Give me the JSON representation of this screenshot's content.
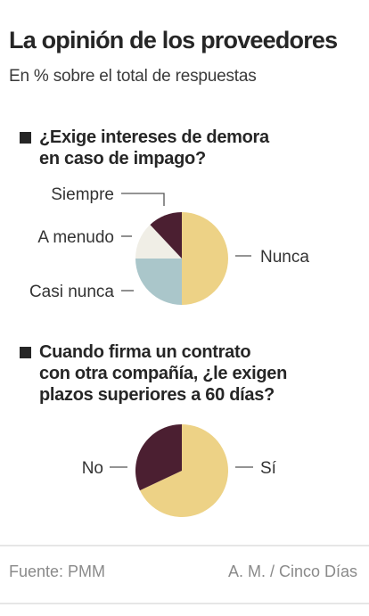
{
  "header": {
    "title": "La opinión de los proveedores",
    "subtitle": "En % sobre el total de respuestas"
  },
  "chart_data": [
    {
      "type": "pie",
      "question": "¿Exige intereses de demora\nen caso de impago?",
      "slices": [
        {
          "label": "Nunca",
          "value": 50,
          "color": "#edd286"
        },
        {
          "label": "Casi nunca",
          "value": 25,
          "color": "#aac6ca"
        },
        {
          "label": "A menudo",
          "value": 13,
          "color": "#f0eee6"
        },
        {
          "label": "Siempre",
          "value": 12,
          "color": "#4b1f31"
        }
      ]
    },
    {
      "type": "pie",
      "question": "Cuando firma un contrato\ncon otra compañía, ¿le exigen\nplazos superiores a 60 días?",
      "slices": [
        {
          "label": "Sí",
          "value": 68,
          "color": "#edd286"
        },
        {
          "label": "No",
          "value": 32,
          "color": "#4b1f31"
        }
      ]
    }
  ],
  "footer": {
    "source": "Fuente: PMM",
    "credit": "A. M. / Cinco Días"
  }
}
